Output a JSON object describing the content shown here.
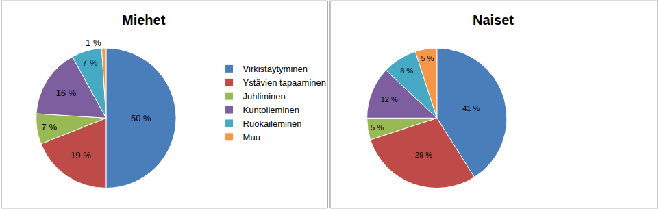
{
  "chart_data": [
    {
      "type": "pie",
      "title": "Miehet",
      "categories": [
        "Virkistäytyminen",
        "Ystävien tapaaminen",
        "Juhliminen",
        "Kuntoileminen",
        "Ruokaileminen",
        "Muu"
      ],
      "values": [
        50,
        19,
        7,
        16,
        7,
        1
      ],
      "value_labels": [
        "50 %",
        "19 %",
        "7 %",
        "16 %",
        "7 %",
        "1 %"
      ],
      "colors": [
        "#4a7ebb",
        "#be4b48",
        "#98b954",
        "#7d5fa0",
        "#46aac5",
        "#f79646"
      ],
      "data_labels": true,
      "legend": "right"
    },
    {
      "type": "pie",
      "title": "Naiset",
      "categories": [
        "Virkistäytyminen",
        "Ystävien tapaaminen",
        "Juhliminen",
        "Kuntoileminen",
        "Ruokaileminen",
        "Muu"
      ],
      "values": [
        41,
        29,
        5,
        12,
        8,
        5
      ],
      "value_labels": [
        "41 %",
        "29 %",
        "5 %",
        "12 %",
        "8 %",
        "5 %"
      ],
      "colors": [
        "#4a7ebb",
        "#be4b48",
        "#98b954",
        "#7d5fa0",
        "#46aac5",
        "#f79646"
      ],
      "data_labels": true,
      "legend": "right"
    }
  ]
}
